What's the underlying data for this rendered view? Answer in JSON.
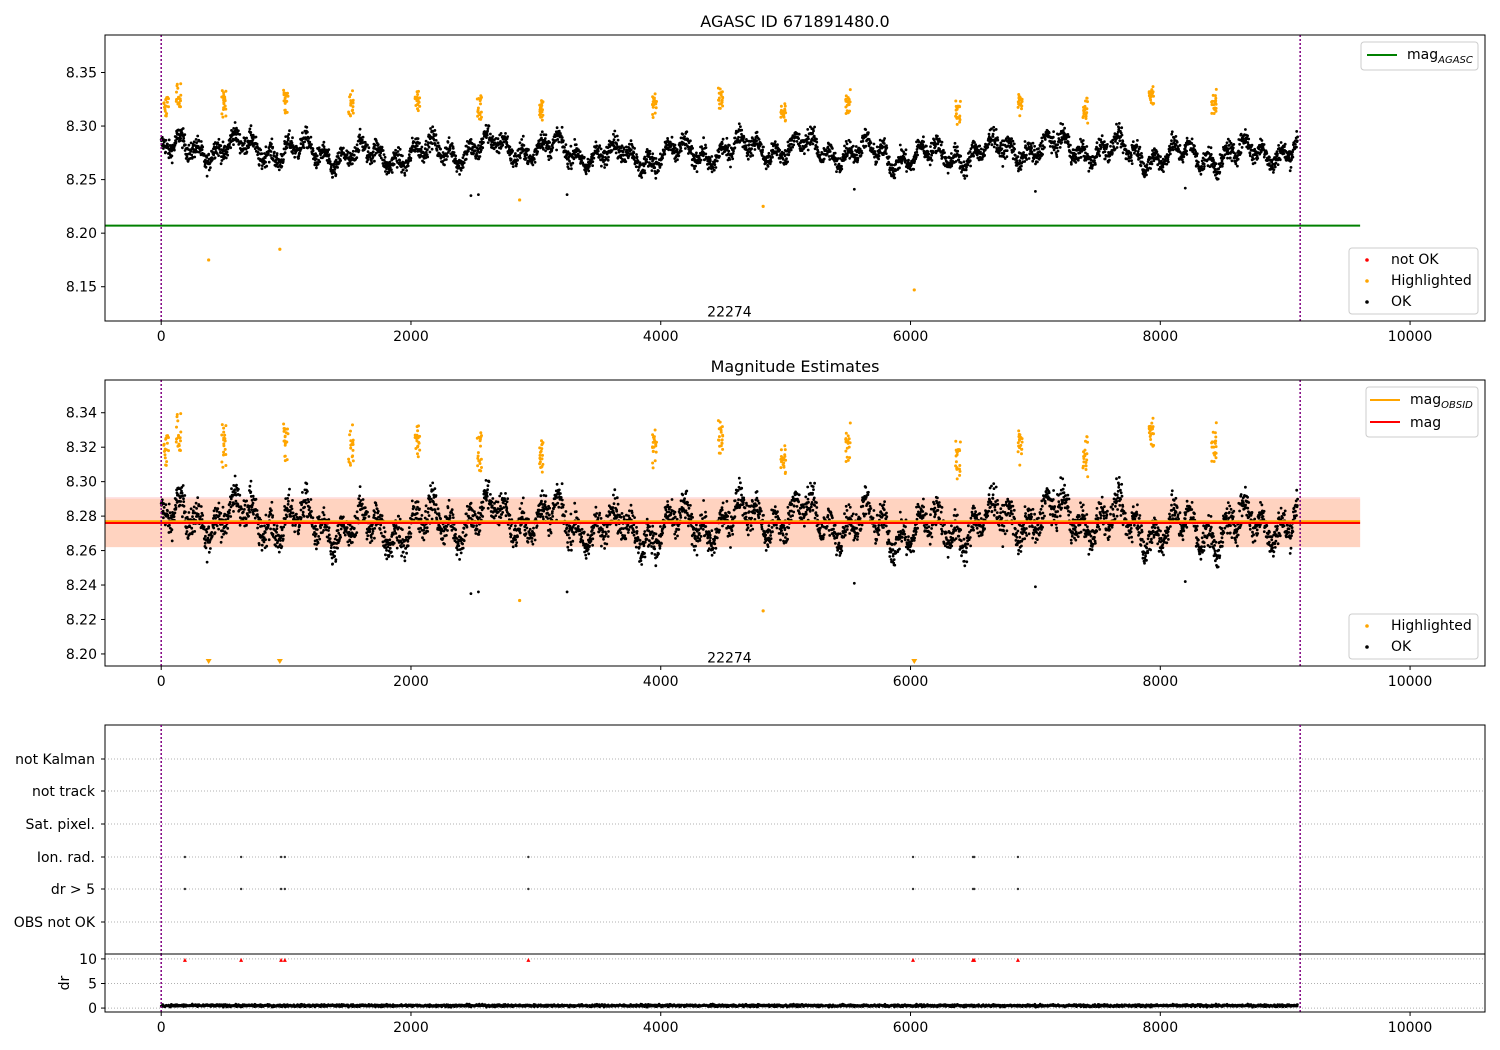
{
  "chart_data": [
    {
      "type": "scatter",
      "title": "AGASC ID 671891480.0",
      "x_range": [
        -450,
        10600
      ],
      "y_range": [
        8.118,
        8.385
      ],
      "x_ticks": [
        0,
        2000,
        4000,
        6000,
        8000,
        10000
      ],
      "y_ticks": [
        8.15,
        8.2,
        8.25,
        8.3,
        8.35
      ],
      "y_tick_labels": [
        "8.15",
        "8.20",
        "8.25",
        "8.30",
        "8.35"
      ],
      "lines": [
        {
          "name": "magAGASC",
          "label_main": "mag",
          "label_sub": "AGASC",
          "color": "#008000",
          "x": [
            -450,
            9600
          ],
          "y": 8.207
        }
      ],
      "vlines": [
        0,
        9120
      ],
      "vline_color": "#800080",
      "annotation": {
        "text": "22274",
        "x": 4550,
        "y": 8.127
      },
      "legend_top": "top-right",
      "legend_bottom": "bottom-right",
      "series": [
        {
          "name": "not OK",
          "color": "#ff0000"
        },
        {
          "name": "Highlighted",
          "color": "#ffa500"
        },
        {
          "name": "OK",
          "color": "#000000"
        }
      ],
      "trend": {
        "start": 0,
        "end": 9100,
        "mean": 8.276,
        "amplitude": 0.013,
        "noise": 0.009
      },
      "highlight_clusters": [
        [
          40,
          8.325
        ],
        [
          140,
          8.337
        ],
        [
          500,
          8.33
        ],
        [
          1000,
          8.333
        ],
        [
          1520,
          8.33
        ],
        [
          2050,
          8.333
        ],
        [
          2550,
          8.325
        ],
        [
          3050,
          8.325
        ],
        [
          3950,
          8.33
        ],
        [
          4480,
          8.334
        ],
        [
          4980,
          8.325
        ],
        [
          5500,
          8.33
        ],
        [
          6380,
          8.322
        ],
        [
          6880,
          8.33
        ],
        [
          7400,
          8.324
        ],
        [
          7930,
          8.34
        ],
        [
          8430,
          8.33
        ]
      ],
      "outliers_highlighted": [
        [
          380,
          8.175
        ],
        [
          950,
          8.185
        ],
        [
          2870,
          8.231
        ],
        [
          4820,
          8.225
        ],
        [
          6030,
          8.147
        ]
      ],
      "outliers_ok": [
        [
          2480,
          8.235
        ],
        [
          2540,
          8.236
        ],
        [
          3250,
          8.236
        ],
        [
          5550,
          8.241
        ],
        [
          7000,
          8.239
        ],
        [
          8200,
          8.242
        ]
      ]
    },
    {
      "type": "scatter",
      "title": "Magnitude Estimates",
      "x_range": [
        -450,
        10600
      ],
      "y_range": [
        8.193,
        8.359
      ],
      "x_ticks": [
        0,
        2000,
        4000,
        6000,
        8000,
        10000
      ],
      "y_ticks": [
        8.2,
        8.22,
        8.24,
        8.26,
        8.28,
        8.3,
        8.32,
        8.34
      ],
      "y_tick_labels": [
        "8.20",
        "8.22",
        "8.24",
        "8.26",
        "8.28",
        "8.30",
        "8.32",
        "8.34"
      ],
      "lines": [
        {
          "name": "magOBSID",
          "label_main": "mag",
          "label_sub": "OBSID",
          "color": "#ffa500",
          "x": [
            -450,
            9600
          ],
          "y": 8.277
        },
        {
          "name": "mag",
          "label_main": "mag",
          "label_sub": "",
          "color": "#ff0000",
          "x": [
            -450,
            9600
          ],
          "y": 8.276
        }
      ],
      "bands": [
        {
          "color": "#ffb6b6",
          "opacity": 0.45,
          "y": [
            8.262,
            8.291
          ]
        },
        {
          "color": "#ffc08a",
          "opacity": 0.35,
          "y": [
            8.262,
            8.29
          ]
        }
      ],
      "vlines": [
        0,
        9120
      ],
      "vline_color": "#800080",
      "annotation": {
        "text": "22274",
        "x": 4550,
        "y": 8.198
      },
      "legend_top": "top-right",
      "legend_bottom": "bottom-right",
      "series": [
        {
          "name": "Highlighted",
          "color": "#ffa500"
        },
        {
          "name": "OK",
          "color": "#000000"
        }
      ],
      "down_markers": [
        380,
        950,
        6030
      ]
    },
    {
      "type": "scatter",
      "title": "",
      "x_range": [
        -450,
        10600
      ],
      "categories": [
        "not Kalman",
        "not track",
        "Sat. pixel.",
        "Ion. rad.",
        "dr > 5",
        "OBS not OK"
      ],
      "flag_points": {
        "Ion. rad.": [
          190,
          640,
          960,
          990,
          2940,
          6020,
          6500,
          6510,
          6860
        ],
        "dr > 5": [
          190,
          640,
          960,
          990,
          2940,
          6020,
          6500,
          6510,
          6860
        ]
      },
      "vlines": [
        0,
        9120
      ],
      "vline_color": "#800080"
    },
    {
      "type": "scatter",
      "title": "",
      "ylabel": "dr",
      "x_range": [
        -450,
        10600
      ],
      "y_range": [
        -0.8,
        11.0
      ],
      "x_ticks": [
        0,
        2000,
        4000,
        6000,
        8000,
        10000
      ],
      "y_ticks": [
        0,
        5,
        10
      ],
      "y_tick_labels": [
        "0",
        "5",
        "10"
      ],
      "marker_y": 9.8,
      "markers_red": [
        190,
        640,
        960,
        990,
        2940,
        6020,
        6500,
        6510,
        6860
      ],
      "baseline": {
        "start": 0,
        "end": 9100,
        "mean": 0.5,
        "noise": 0.25
      },
      "vlines": [
        0,
        9120
      ],
      "vline_color": "#800080"
    }
  ]
}
